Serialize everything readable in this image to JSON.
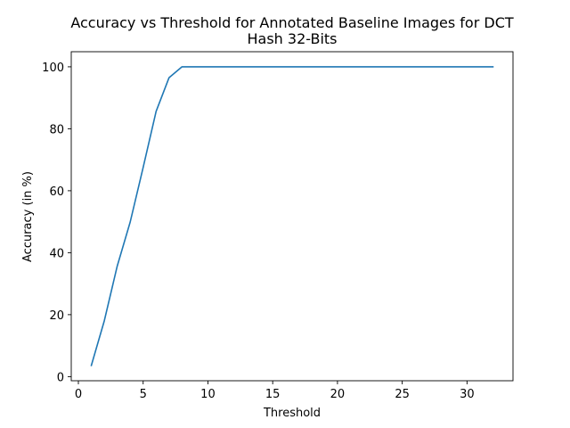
{
  "chart_data": {
    "type": "line",
    "title_lines": [
      "Accuracy vs Threshold for Annotated Baseline Images for DCT",
      "Hash 32-Bits"
    ],
    "xlabel": "Threshold",
    "ylabel": "Accuracy (in %)",
    "xlim": [
      -0.55,
      33.55
    ],
    "ylim": [
      -1.33,
      104.87
    ],
    "xticks": [
      0,
      5,
      10,
      15,
      20,
      25,
      30
    ],
    "yticks": [
      0,
      20,
      40,
      60,
      80,
      100
    ],
    "grid": false,
    "series": [
      {
        "color": "#1f77b4",
        "x": [
          1,
          2,
          3,
          4,
          5,
          6,
          7,
          8,
          9,
          10,
          11,
          12,
          13,
          14,
          15,
          16,
          17,
          18,
          19,
          20,
          21,
          22,
          23,
          24,
          25,
          26,
          27,
          28,
          29,
          30,
          31,
          32
        ],
        "y": [
          3.6,
          18.0,
          35.7,
          49.9,
          67.5,
          85.6,
          96.5,
          100,
          100,
          100,
          100,
          100,
          100,
          100,
          100,
          100,
          100,
          100,
          100,
          100,
          100,
          100,
          100,
          100,
          100,
          100,
          100,
          100,
          100,
          100,
          100,
          100
        ]
      }
    ]
  }
}
